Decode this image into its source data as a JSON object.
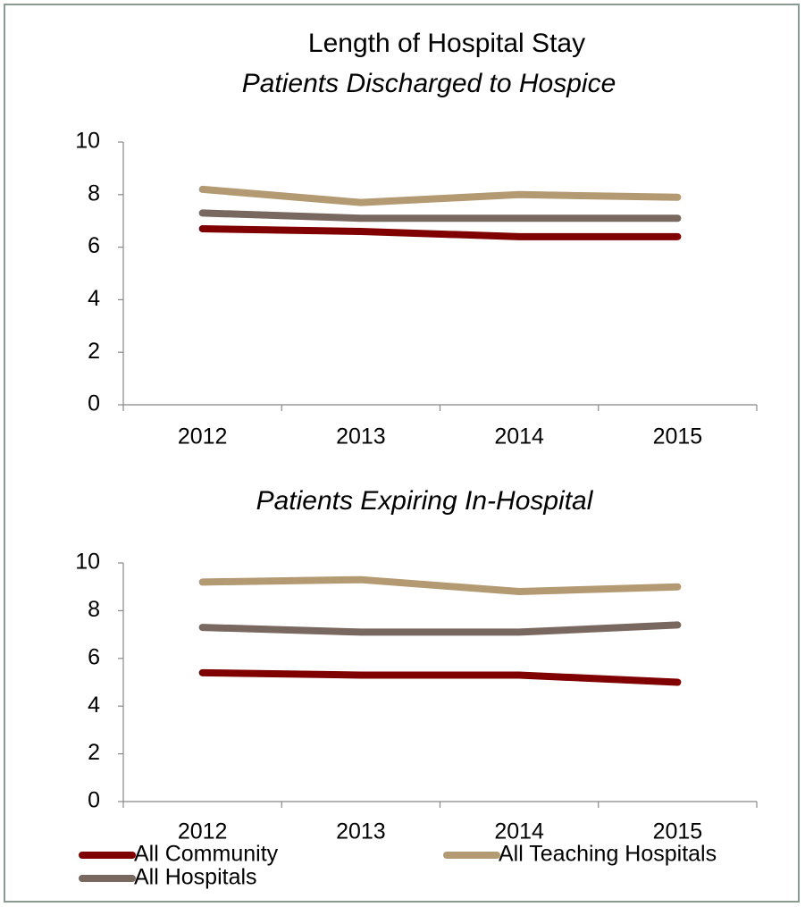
{
  "chart_data": [
    {
      "type": "line",
      "title": "Length of Hospital Stay",
      "subtitle": "Patients Discharged to Hospice",
      "categories": [
        "2012",
        "2013",
        "2014",
        "2015"
      ],
      "series": [
        {
          "color": "#800000",
          "values": [
            6.7,
            6.6,
            6.4,
            6.4
          ]
        },
        {
          "color": "#b39a72",
          "values": [
            8.2,
            7.7,
            8.0,
            7.9
          ]
        },
        {
          "color": "#786860",
          "values": [
            7.3,
            7.1,
            7.1,
            7.1
          ]
        }
      ],
      "ylim": [
        0,
        10
      ],
      "yticks": [
        0,
        2,
        4,
        6,
        8,
        10
      ]
    },
    {
      "type": "line",
      "title": "Patients Expiring In-Hospital",
      "categories": [
        "2012",
        "2013",
        "2014",
        "2015"
      ],
      "series": [
        {
          "name": "All Community",
          "color": "#800000",
          "values": [
            5.4,
            5.3,
            5.3,
            5.0
          ]
        },
        {
          "name": "All Teaching Hospitals",
          "color": "#b39a72",
          "values": [
            9.2,
            9.3,
            8.8,
            9.0
          ]
        },
        {
          "name": "All Hospitals",
          "color": "#786860",
          "values": [
            7.3,
            7.1,
            7.1,
            7.4
          ]
        }
      ],
      "ylim": [
        0,
        10
      ],
      "yticks": [
        0,
        2,
        4,
        6,
        8,
        10
      ]
    }
  ]
}
